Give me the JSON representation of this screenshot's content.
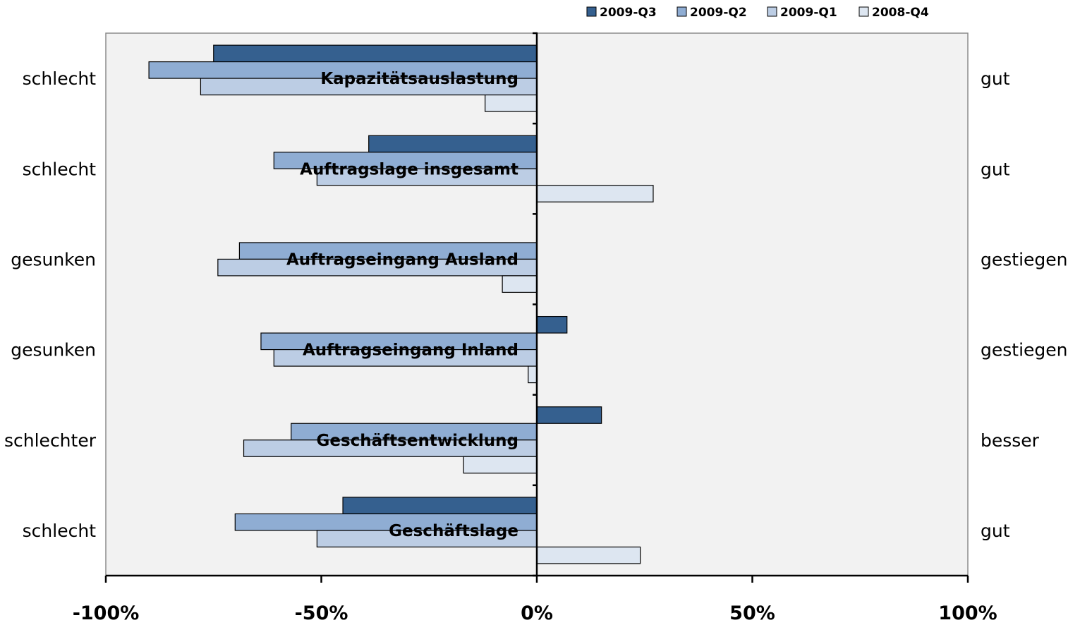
{
  "chart_data": {
    "type": "bar",
    "orientation": "horizontal",
    "xlim": [
      -100,
      100
    ],
    "x_ticks": [
      -100,
      -50,
      0,
      50,
      100
    ],
    "x_tick_labels": [
      "-100%",
      "-50%",
      "0%",
      "50%",
      "100%"
    ],
    "grid": false,
    "legend_position": "top-right",
    "categories": [
      "Kapazitätsauslastung",
      "Auftragslage insgesamt",
      "Auftragseingang Ausland",
      "Auftragseingang Inland",
      "Geschäftsentwicklung",
      "Geschäftslage"
    ],
    "left_labels": [
      "schlecht",
      "schlecht",
      "gesunken",
      "gesunken",
      "schlechter",
      "schlecht"
    ],
    "right_labels": [
      "gut",
      "gut",
      "gestiegen",
      "gestiegen",
      "besser",
      "gut"
    ],
    "series": [
      {
        "name": "2009-Q3",
        "color": "#35608f",
        "values": [
          -75,
          -39,
          0,
          7,
          15,
          -45
        ]
      },
      {
        "name": "2009-Q2",
        "color": "#8fadd3",
        "values": [
          -90,
          -61,
          -69,
          -64,
          -57,
          -70
        ]
      },
      {
        "name": "2009-Q1",
        "color": "#bccde4",
        "values": [
          -78,
          -51,
          -74,
          -61,
          -68,
          -51
        ]
      },
      {
        "name": "2008-Q4",
        "color": "#dde6f1",
        "values": [
          -12,
          27,
          -8,
          -2,
          -17,
          24
        ]
      }
    ],
    "legend_order": [
      "2009-Q3",
      "2009-Q2",
      "2009-Q1",
      "2008-Q4"
    ]
  }
}
